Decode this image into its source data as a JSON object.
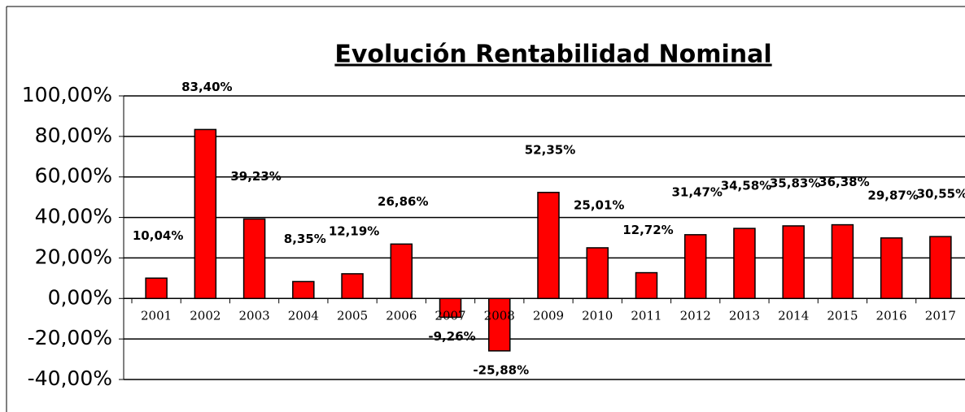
{
  "chart_data": {
    "type": "bar",
    "title": "Evolución Rentabilidad Nominal",
    "categories": [
      "2001",
      "2002",
      "2003",
      "2004",
      "2005",
      "2006",
      "2007",
      "2008",
      "2009",
      "2010",
      "2011",
      "2012",
      "2013",
      "2014",
      "2015",
      "2016",
      "2017"
    ],
    "values": [
      10.04,
      83.4,
      39.23,
      8.35,
      12.19,
      26.86,
      -9.26,
      -25.88,
      52.35,
      25.01,
      12.72,
      31.47,
      34.58,
      35.83,
      36.38,
      29.87,
      30.55
    ],
    "value_labels": [
      "10,04%",
      "83,40%",
      "39,23%",
      "8,35%",
      "12,19%",
      "26,86%",
      "-9,26%",
      "-25,88%",
      "52,35%",
      "25,01%",
      "12,72%",
      "31,47%",
      "34,58%",
      "35,83%",
      "36,38%",
      "29,87%",
      "30,55%"
    ],
    "color": "#ff0000",
    "ylim": [
      -40,
      100
    ],
    "yticks": [
      {
        "value": -40,
        "label": "-40,00%"
      },
      {
        "value": -20,
        "label": "-20,00%"
      },
      {
        "value": 0,
        "label": "0,00%"
      },
      {
        "value": 20,
        "label": "20,00%"
      },
      {
        "value": 40,
        "label": "40,00%"
      },
      {
        "value": 60,
        "label": "60,00%"
      },
      {
        "value": 80,
        "label": "80,00%"
      },
      {
        "value": 100,
        "label": "100,00%"
      }
    ],
    "grid": true
  }
}
